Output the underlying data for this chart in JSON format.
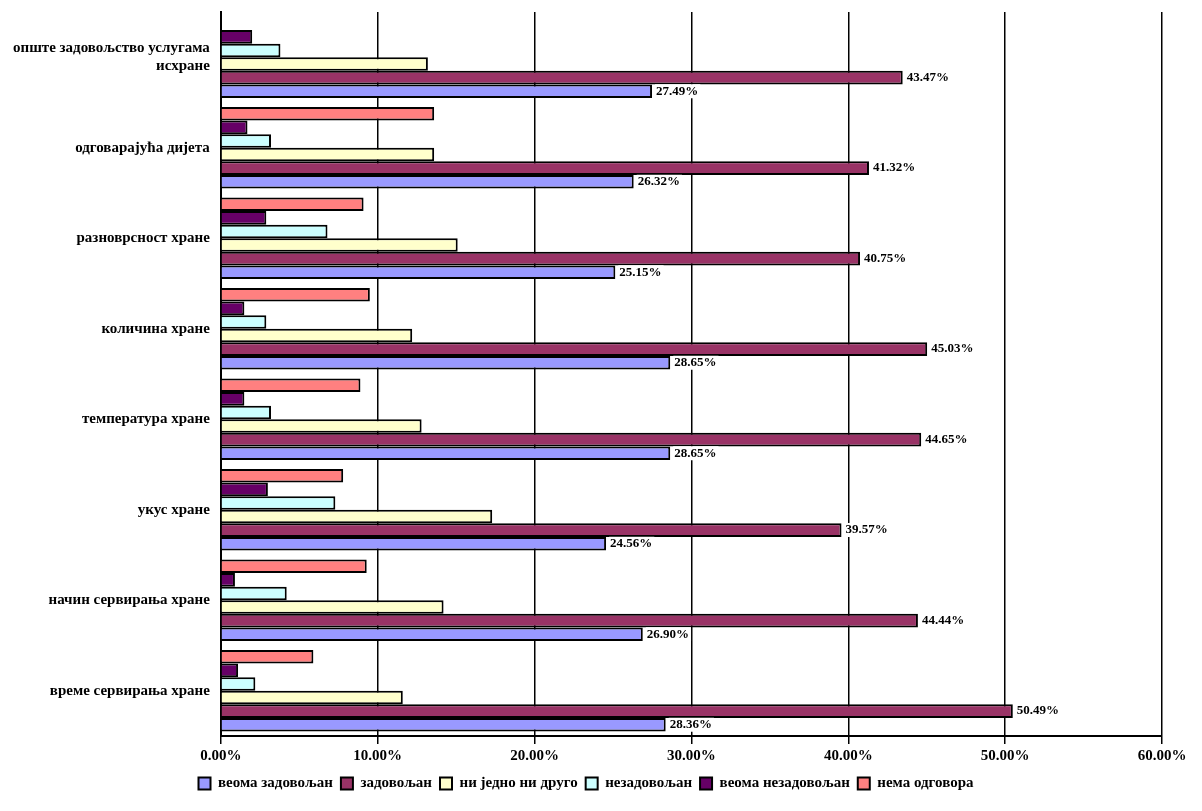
{
  "chart_data": {
    "type": "bar",
    "orientation": "horizontal",
    "categories": [
      "опште задовољство услугама исхране",
      "одговарајућа дијета",
      "разноврсност хране",
      "количина хране",
      "температура хране",
      "укус хране",
      "начин сервирања хране",
      "време сервирања хране"
    ],
    "series": [
      {
        "name": "веома задовољан",
        "color": "#9999ff",
        "values": [
          27.49,
          26.32,
          25.15,
          28.65,
          28.65,
          24.56,
          26.9,
          28.36
        ],
        "value_labels": [
          "27.49%",
          "26.32%",
          "25.15%",
          "28.65%",
          "28.65%",
          "24.56%",
          "26.90%",
          "28.36%"
        ]
      },
      {
        "name": "задовољан",
        "color": "#993366",
        "values": [
          43.47,
          41.32,
          40.75,
          45.03,
          44.65,
          39.57,
          44.44,
          50.49
        ],
        "value_labels": [
          "43.47%",
          "41.32%",
          "40.75%",
          "45.03%",
          "44.65%",
          "39.57%",
          "44.44%",
          "50.49%"
        ]
      },
      {
        "name": "ни једно ни друго",
        "color": "#ffffcc",
        "values": [
          13.2,
          13.6,
          15.1,
          12.2,
          12.8,
          17.3,
          14.2,
          11.6
        ]
      },
      {
        "name": "незадовољан",
        "color": "#ccffff",
        "values": [
          3.8,
          3.2,
          6.8,
          2.9,
          3.2,
          7.3,
          4.2,
          2.2
        ]
      },
      {
        "name": "веома незадовољан",
        "color": "#660066",
        "values": [
          2.0,
          1.7,
          2.9,
          1.5,
          1.5,
          3.0,
          0.9,
          1.1
        ]
      },
      {
        "name": "нема одговора",
        "color": "#ff8080",
        "values": [
          null,
          13.6,
          9.1,
          9.5,
          8.9,
          7.8,
          9.3,
          5.9
        ]
      }
    ],
    "xlim": [
      0,
      60
    ],
    "xticks": [
      {
        "value": 0,
        "label": "0.00%"
      },
      {
        "value": 10,
        "label": "10.00%"
      },
      {
        "value": 20,
        "label": "20.00%"
      },
      {
        "value": 30,
        "label": "30.00%"
      },
      {
        "value": 40,
        "label": "40.00%"
      },
      {
        "value": 50,
        "label": "50.00%"
      },
      {
        "value": 60,
        "label": "60.00%"
      }
    ],
    "grid": "x",
    "legend": "bottom"
  }
}
